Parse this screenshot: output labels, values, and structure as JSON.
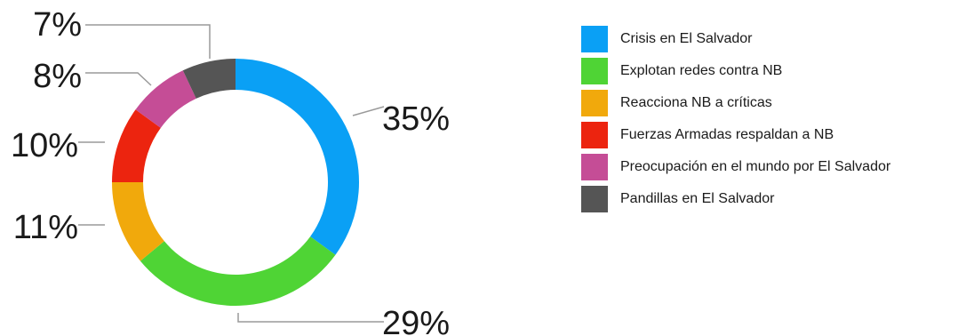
{
  "chart_data": {
    "type": "pie",
    "variant": "donut",
    "legend_position": "right",
    "categories": [
      "Crisis en El Salvador",
      "Explotan redes contra NB",
      "Reacciona NB a críticas",
      "Fuerzas Armadas respaldan a NB",
      "Preocupación en el mundo por El Salvador",
      "Pandillas en El Salvador"
    ],
    "values": [
      35,
      29,
      11,
      10,
      8,
      7
    ],
    "value_labels": [
      "35%",
      "29%",
      "11%",
      "10%",
      "8%",
      "7%"
    ],
    "colors": [
      "#0aa0f5",
      "#4fd435",
      "#f1a90c",
      "#ec240f",
      "#c54d96",
      "#555555"
    ]
  }
}
